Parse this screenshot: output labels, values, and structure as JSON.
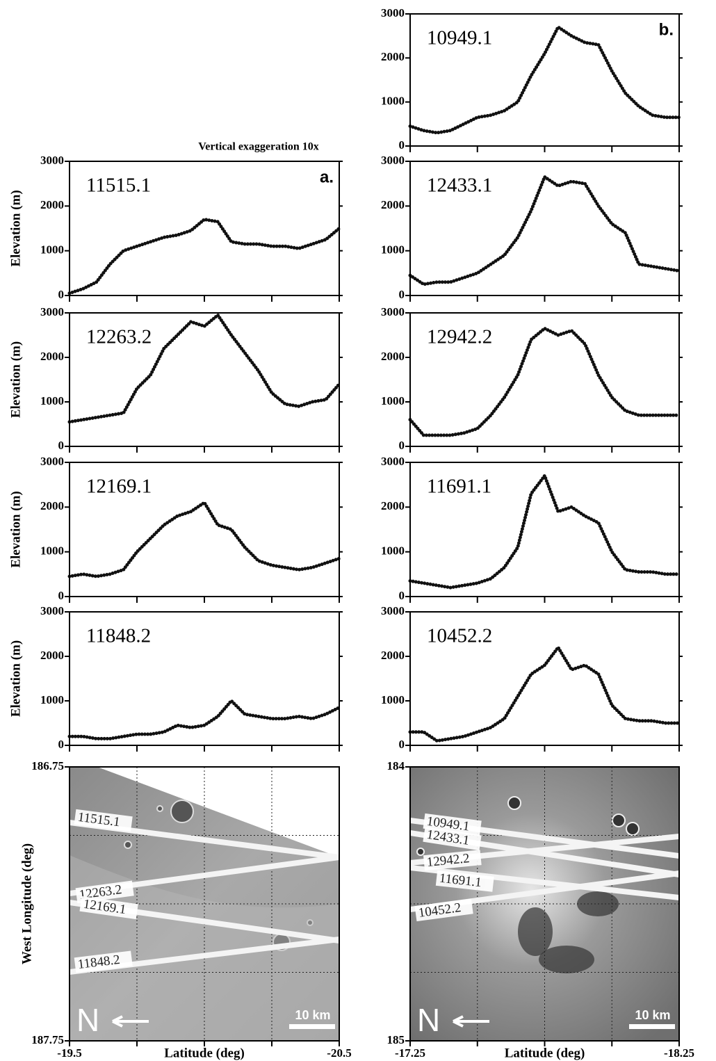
{
  "chart_data": [
    {
      "type": "line",
      "title": "11515.1",
      "panel_label": "a.",
      "annotation": "Vertical exaggeration 10x",
      "y_label": "Elevation (m)",
      "color": "#111111",
      "x": [
        -19.5,
        -19.55,
        -19.6,
        -19.65,
        -19.7,
        -19.75,
        -19.8,
        -19.85,
        -19.9,
        -19.95,
        -20.0,
        -20.05,
        -20.1,
        -20.15,
        -20.2,
        -20.25,
        -20.3,
        -20.35,
        -20.4,
        -20.45,
        -20.5
      ],
      "values": [
        50,
        150,
        300,
        700,
        1000,
        1100,
        1200,
        1300,
        1350,
        1450,
        1700,
        1650,
        1200,
        1150,
        1150,
        1100,
        1100,
        1050,
        1150,
        1250,
        1500
      ],
      "xlim": [
        -19.5,
        -20.5
      ],
      "ylim": [
        0,
        3000
      ],
      "yticks": [
        0,
        1000,
        2000,
        3000
      ]
    },
    {
      "type": "line",
      "title": "12263.2",
      "y_label": "Elevation (m)",
      "color": "#111111",
      "x": [
        -19.5,
        -19.55,
        -19.6,
        -19.65,
        -19.7,
        -19.75,
        -19.8,
        -19.85,
        -19.9,
        -19.95,
        -20.0,
        -20.05,
        -20.1,
        -20.15,
        -20.2,
        -20.25,
        -20.3,
        -20.35,
        -20.4,
        -20.45,
        -20.5
      ],
      "values": [
        550,
        600,
        650,
        700,
        750,
        1300,
        1600,
        2200,
        2500,
        2800,
        2700,
        2950,
        2500,
        2100,
        1700,
        1200,
        950,
        900,
        1000,
        1050,
        1400
      ],
      "xlim": [
        -19.5,
        -20.5
      ],
      "ylim": [
        0,
        3000
      ],
      "yticks": [
        0,
        1000,
        2000,
        3000
      ]
    },
    {
      "type": "line",
      "title": "12169.1",
      "y_label": "Elevation (m)",
      "color": "#111111",
      "x": [
        -19.5,
        -19.55,
        -19.6,
        -19.65,
        -19.7,
        -19.75,
        -19.8,
        -19.85,
        -19.9,
        -19.95,
        -20.0,
        -20.05,
        -20.1,
        -20.15,
        -20.2,
        -20.25,
        -20.3,
        -20.35,
        -20.4,
        -20.45,
        -20.5
      ],
      "values": [
        450,
        500,
        450,
        500,
        600,
        1000,
        1300,
        1600,
        1800,
        1900,
        2100,
        1600,
        1500,
        1100,
        800,
        700,
        650,
        600,
        650,
        750,
        850
      ],
      "xlim": [
        -19.5,
        -20.5
      ],
      "ylim": [
        0,
        3000
      ],
      "yticks": [
        0,
        1000,
        2000,
        3000
      ]
    },
    {
      "type": "line",
      "title": "11848.2",
      "y_label": "Elevation (m)",
      "color": "#111111",
      "x": [
        -19.5,
        -19.55,
        -19.6,
        -19.65,
        -19.7,
        -19.75,
        -19.8,
        -19.85,
        -19.9,
        -19.95,
        -20.0,
        -20.05,
        -20.1,
        -20.15,
        -20.2,
        -20.25,
        -20.3,
        -20.35,
        -20.4,
        -20.45,
        -20.5
      ],
      "values": [
        200,
        200,
        150,
        150,
        200,
        250,
        250,
        300,
        450,
        400,
        450,
        650,
        1000,
        700,
        650,
        600,
        600,
        650,
        600,
        700,
        850
      ],
      "xlim": [
        -19.5,
        -20.5
      ],
      "ylim": [
        0,
        3000
      ],
      "yticks": [
        0,
        1000,
        2000,
        3000
      ]
    },
    {
      "type": "image",
      "track_labels": [
        "11515.1",
        "12263.2",
        "12169.1",
        "11848.2"
      ],
      "north_label": "N",
      "scale_label": "10 km",
      "y_label": "West Longitude (deg)",
      "x_label": "Latitude (deg)",
      "xlim": [
        -19.5,
        -20.5
      ],
      "xticks": [
        -19.5,
        -20.5
      ],
      "ylim": [
        187.75,
        186.75
      ],
      "yticks": [
        186.75,
        187.75
      ]
    },
    {
      "type": "line",
      "title": "10949.1",
      "panel_label": "b.",
      "color": "#111111",
      "x": [
        -17.25,
        -17.3,
        -17.35,
        -17.4,
        -17.45,
        -17.5,
        -17.55,
        -17.6,
        -17.65,
        -17.7,
        -17.75,
        -17.8,
        -17.85,
        -17.9,
        -17.95,
        -18.0,
        -18.05,
        -18.1,
        -18.15,
        -18.2,
        -18.25
      ],
      "values": [
        450,
        350,
        300,
        350,
        500,
        650,
        700,
        800,
        1000,
        1600,
        2100,
        2700,
        2500,
        2350,
        2300,
        1700,
        1200,
        900,
        700,
        650,
        650
      ],
      "xlim": [
        -17.25,
        -18.25
      ],
      "ylim": [
        0,
        3000
      ],
      "yticks": [
        0,
        1000,
        2000,
        3000
      ]
    },
    {
      "type": "line",
      "title": "12433.1",
      "color": "#111111",
      "x": [
        -17.25,
        -17.3,
        -17.35,
        -17.4,
        -17.45,
        -17.5,
        -17.55,
        -17.6,
        -17.65,
        -17.7,
        -17.75,
        -17.8,
        -17.85,
        -17.9,
        -17.95,
        -18.0,
        -18.05,
        -18.1,
        -18.15,
        -18.2,
        -18.25
      ],
      "values": [
        450,
        250,
        300,
        300,
        400,
        500,
        700,
        900,
        1300,
        1900,
        2650,
        2450,
        2550,
        2500,
        2000,
        1600,
        1400,
        700,
        650,
        600,
        550
      ],
      "xlim": [
        -17.25,
        -18.25
      ],
      "ylim": [
        0,
        3000
      ],
      "yticks": [
        0,
        1000,
        2000,
        3000
      ]
    },
    {
      "type": "line",
      "title": "12942.2",
      "color": "#111111",
      "x": [
        -17.25,
        -17.3,
        -17.35,
        -17.4,
        -17.45,
        -17.5,
        -17.55,
        -17.6,
        -17.65,
        -17.7,
        -17.75,
        -17.8,
        -17.85,
        -17.9,
        -17.95,
        -18.0,
        -18.05,
        -18.1,
        -18.15,
        -18.2,
        -18.25
      ],
      "values": [
        600,
        250,
        250,
        250,
        300,
        400,
        700,
        1100,
        1600,
        2400,
        2650,
        2500,
        2600,
        2300,
        1600,
        1100,
        800,
        700,
        700,
        700,
        700
      ],
      "xlim": [
        -17.25,
        -18.25
      ],
      "ylim": [
        0,
        3000
      ],
      "yticks": [
        0,
        1000,
        2000,
        3000
      ]
    },
    {
      "type": "line",
      "title": "11691.1",
      "color": "#111111",
      "x": [
        -17.25,
        -17.3,
        -17.35,
        -17.4,
        -17.45,
        -17.5,
        -17.55,
        -17.6,
        -17.65,
        -17.7,
        -17.75,
        -17.8,
        -17.85,
        -17.9,
        -17.95,
        -18.0,
        -18.05,
        -18.1,
        -18.15,
        -18.2,
        -18.25
      ],
      "values": [
        350,
        300,
        250,
        200,
        250,
        300,
        400,
        650,
        1100,
        2300,
        2700,
        1900,
        2000,
        1800,
        1650,
        1000,
        600,
        550,
        550,
        500,
        500
      ],
      "xlim": [
        -17.25,
        -18.25
      ],
      "ylim": [
        0,
        3000
      ],
      "yticks": [
        0,
        1000,
        2000,
        3000
      ]
    },
    {
      "type": "line",
      "title": "10452.2",
      "color": "#111111",
      "x": [
        -17.25,
        -17.3,
        -17.35,
        -17.4,
        -17.45,
        -17.5,
        -17.55,
        -17.6,
        -17.65,
        -17.7,
        -17.75,
        -17.8,
        -17.85,
        -17.9,
        -17.95,
        -18.0,
        -18.05,
        -18.1,
        -18.15,
        -18.2,
        -18.25
      ],
      "values": [
        300,
        300,
        100,
        150,
        200,
        300,
        400,
        600,
        1100,
        1600,
        1800,
        2200,
        1700,
        1800,
        1600,
        900,
        600,
        550,
        550,
        500,
        500
      ],
      "xlim": [
        -17.25,
        -18.25
      ],
      "ylim": [
        0,
        3000
      ],
      "yticks": [
        0,
        1000,
        2000,
        3000
      ]
    },
    {
      "type": "image",
      "track_labels": [
        "10949.1",
        "12433.1",
        "12942.2",
        "11691.1",
        "10452.2"
      ],
      "north_label": "N",
      "scale_label": "10 km",
      "x_label": "Latitude (deg)",
      "xlim": [
        -17.25,
        -18.25
      ],
      "xticks": [
        -17.25,
        -18.25
      ],
      "ylim": [
        185,
        184
      ],
      "yticks": [
        184,
        185
      ]
    }
  ]
}
